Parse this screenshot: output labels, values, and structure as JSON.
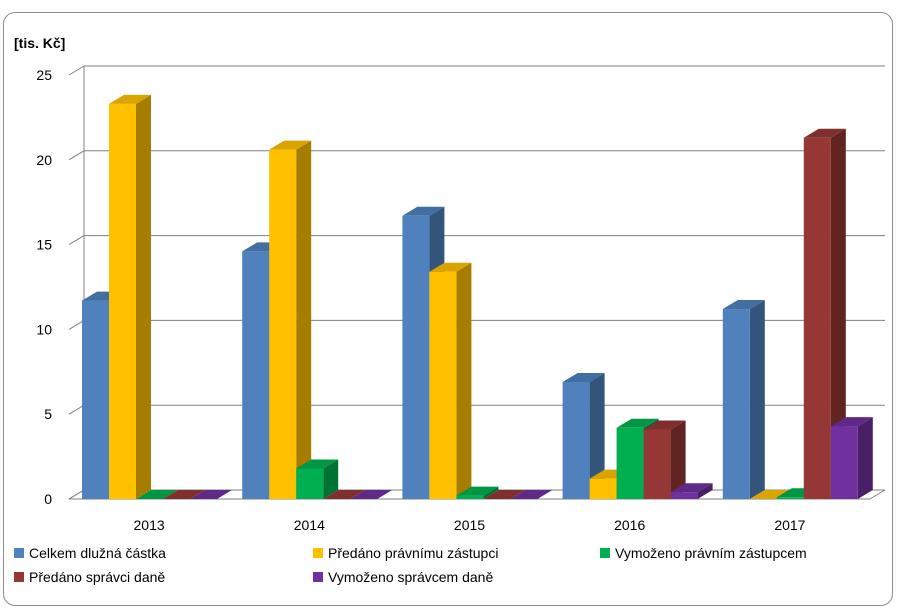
{
  "chart_data": {
    "type": "bar",
    "title": "",
    "ylabel": "[tis. Kč]",
    "xlabel": "",
    "categories": [
      "2013",
      "2014",
      "2015",
      "2016",
      "2017"
    ],
    "ylim": [
      0,
      25
    ],
    "yticks": [
      0,
      5,
      10,
      15,
      20,
      25
    ],
    "grid": true,
    "legend_position": "bottom",
    "style": "3d-clustered-column",
    "series": [
      {
        "name": "Celkem dlužná částka",
        "color": "#4f81bd",
        "values": [
          11.7,
          14.6,
          16.7,
          6.9,
          11.2
        ]
      },
      {
        "name": "Předáno právnímu zástupci",
        "color": "#ffc000",
        "values": [
          23.3,
          20.6,
          13.4,
          1.2,
          0
        ]
      },
      {
        "name": "Vymoženo právním zástupcem",
        "color": "#00b050",
        "values": [
          0,
          1.8,
          0.2,
          4.2,
          0.1
        ]
      },
      {
        "name": "Předáno správci daně",
        "color": "#953735",
        "values": [
          0,
          0,
          0,
          4.1,
          21.3
        ]
      },
      {
        "name": "Vymoženo správcem daně",
        "color": "#7030a0",
        "values": [
          0,
          0,
          0,
          0.4,
          4.3
        ]
      }
    ]
  }
}
